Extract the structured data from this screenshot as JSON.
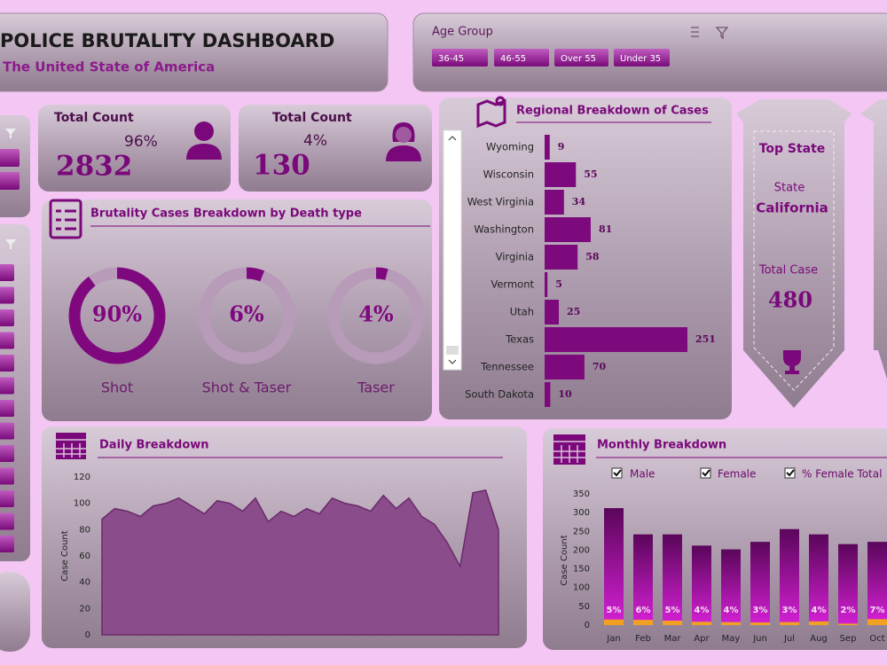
{
  "header": {
    "title": "POLICE BRUTALITY DASHBOARD",
    "subtitle": "The United State of America"
  },
  "age_filter": {
    "title": "Age Group",
    "options": [
      "36-45",
      "46-55",
      "Over 55",
      "Under 35"
    ]
  },
  "kpis": [
    {
      "title": "Total Count",
      "percent": "96%",
      "count": 2832
    },
    {
      "title": "Total Count",
      "percent": "4%",
      "count": 130
    }
  ],
  "top_state": {
    "title": "Top State",
    "state_label": "State",
    "state": "California",
    "total_label": "Total Case",
    "total": 480
  },
  "chart_data": [
    {
      "type": "donut",
      "title": "Brutality Cases Breakdown by Death type",
      "categories": [
        "Shot",
        "Shot & Taser",
        "Taser"
      ],
      "values": [
        90,
        6,
        4
      ],
      "value_labels": [
        "90%",
        "6%",
        "4%"
      ],
      "color": "#80087f",
      "track_color": "#b89ab9"
    },
    {
      "type": "hbar",
      "title": "Regional Breakdown of Cases",
      "categories": [
        "Wyoming",
        "Wisconsin",
        "West Virginia",
        "Washington",
        "Virginia",
        "Vermont",
        "Utah",
        "Texas",
        "Tennessee",
        "South Dakota"
      ],
      "values": [
        9,
        55,
        34,
        81,
        58,
        5,
        25,
        251,
        70,
        10
      ],
      "color": "#7d0a7d"
    },
    {
      "type": "area",
      "title": "Daily Breakdown",
      "ylabel": "Case Count",
      "values": [
        88,
        96,
        94,
        90,
        98,
        100,
        104,
        98,
        92,
        102,
        100,
        94,
        104,
        86,
        94,
        90,
        96,
        92,
        104,
        100,
        98,
        94,
        106,
        96,
        104,
        90,
        84,
        70,
        52,
        108,
        110,
        80
      ],
      "ylim": [
        0,
        120
      ],
      "yticks": [
        0,
        20,
        40,
        60,
        80,
        100,
        120
      ],
      "color": "#8b4c8b"
    },
    {
      "type": "stacked_bar",
      "title": "Monthly Breakdown",
      "ylabel": "Case Count",
      "categories": [
        "Jan",
        "Feb",
        "Mar",
        "Apr",
        "May",
        "Jun",
        "Jul",
        "Aug",
        "Sep",
        "Oct"
      ],
      "series": [
        {
          "name": "Male",
          "color": "#800a80",
          "values": [
            297,
            228,
            230,
            203,
            194,
            215,
            248,
            232,
            212,
            206
          ]
        },
        {
          "name": "Female",
          "color": "#f2a024",
          "values": [
            15,
            14,
            12,
            9,
            8,
            7,
            8,
            10,
            4,
            16
          ]
        },
        {
          "name": "% Female Total",
          "values": [
            5,
            6,
            5,
            4,
            4,
            3,
            3,
            4,
            2,
            7
          ],
          "value_labels": [
            "5%",
            "6%",
            "5%",
            "4%",
            "4%",
            "3%",
            "3%",
            "4%",
            "2%",
            "7%"
          ]
        }
      ],
      "ylim": [
        0,
        350
      ],
      "yticks": [
        0,
        50,
        100,
        150,
        200,
        250,
        300,
        350
      ]
    }
  ]
}
